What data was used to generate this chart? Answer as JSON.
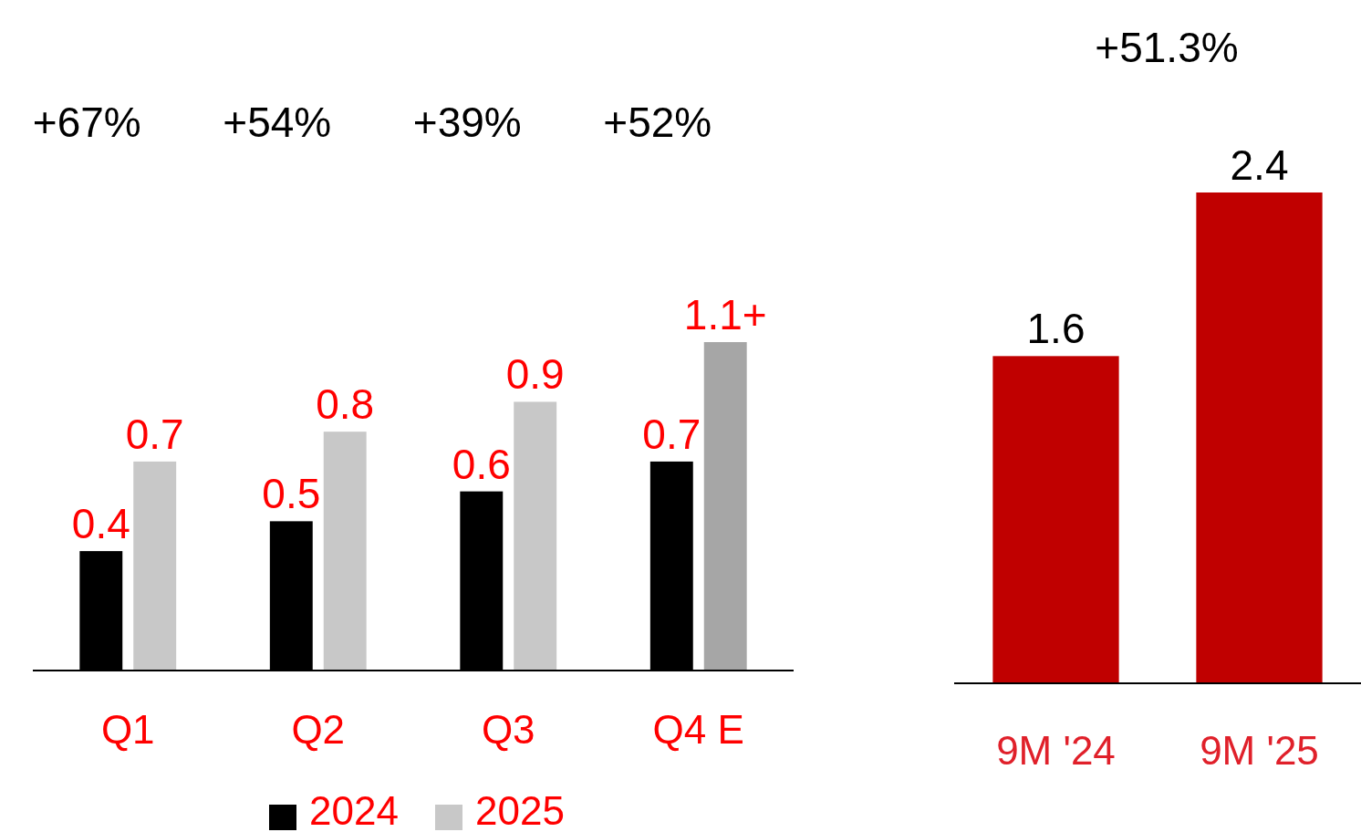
{
  "chart_data": [
    {
      "type": "bar",
      "categories": [
        "Q1",
        "Q2",
        "Q3",
        "Q4 E"
      ],
      "series": [
        {
          "name": "2024",
          "color": "#000000",
          "values": [
            0.4,
            0.5,
            0.6,
            0.7
          ],
          "value_labels": [
            "0.4",
            "0.5",
            "0.6",
            "0.7"
          ]
        },
        {
          "name": "2025",
          "color": "#c8c8c8",
          "colors": [
            "#c8c8c8",
            "#c8c8c8",
            "#c8c8c8",
            "#a6a6a6"
          ],
          "values": [
            0.7,
            0.8,
            0.9,
            1.1
          ],
          "value_labels": [
            "0.7",
            "0.8",
            "0.9",
            "1.1+"
          ]
        }
      ],
      "annotations": [
        "+67%",
        "+54%",
        "+39%",
        "+52%"
      ],
      "legend": "bottom"
    },
    {
      "type": "bar",
      "categories": [
        "9M '24",
        "9M '25"
      ],
      "values": [
        1.6,
        2.4
      ],
      "color": "#c00000",
      "data_labels": true,
      "annotations": [
        "+51.3%"
      ]
    }
  ]
}
